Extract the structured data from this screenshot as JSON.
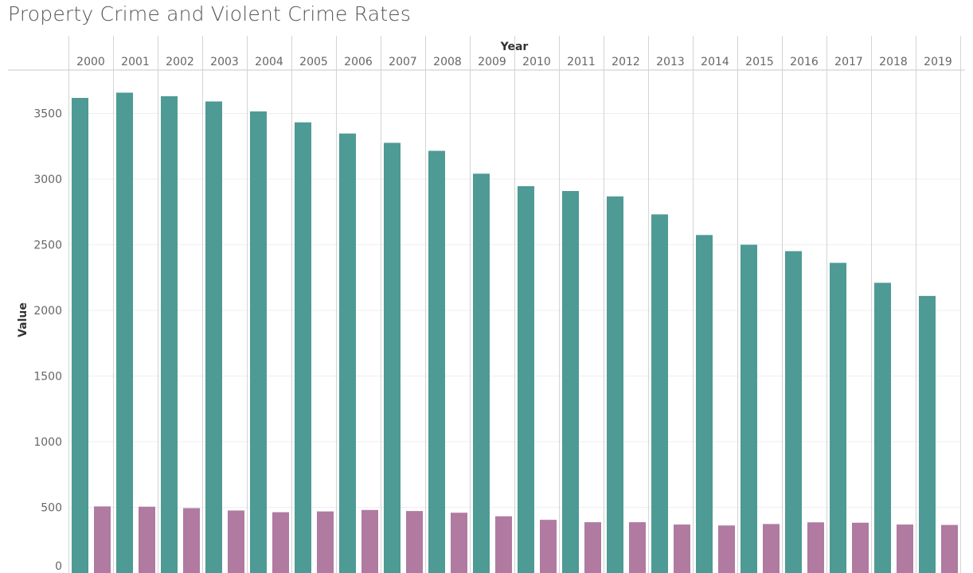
{
  "chart_data": {
    "type": "bar",
    "title": "Property Crime and Violent Crime Rates",
    "column_header": "Year",
    "ylabel": "Value",
    "categories": [
      "2000",
      "2001",
      "2002",
      "2003",
      "2004",
      "2005",
      "2006",
      "2007",
      "2008",
      "2009",
      "2010",
      "2011",
      "2012",
      "2013",
      "2014",
      "2015",
      "2016",
      "2017",
      "2018",
      "2019"
    ],
    "series": [
      {
        "color": "#4e9a94",
        "values": [
          3618,
          3658,
          3631,
          3591,
          3515,
          3432,
          3347,
          3276,
          3215,
          3041,
          2946,
          2909,
          2868,
          2731,
          2574,
          2500,
          2451,
          2362,
          2210,
          2110
        ]
      },
      {
        "color": "#b07aa1",
        "values": [
          507,
          505,
          494,
          476,
          463,
          469,
          480,
          472,
          459,
          432,
          405,
          387,
          387,
          369,
          362,
          373,
          386,
          383,
          369,
          366
        ]
      }
    ],
    "yticks": [
      0,
      500,
      1000,
      1500,
      2000,
      2500,
      3000,
      3500
    ],
    "ylim": [
      0,
      3900
    ],
    "grid": true
  }
}
